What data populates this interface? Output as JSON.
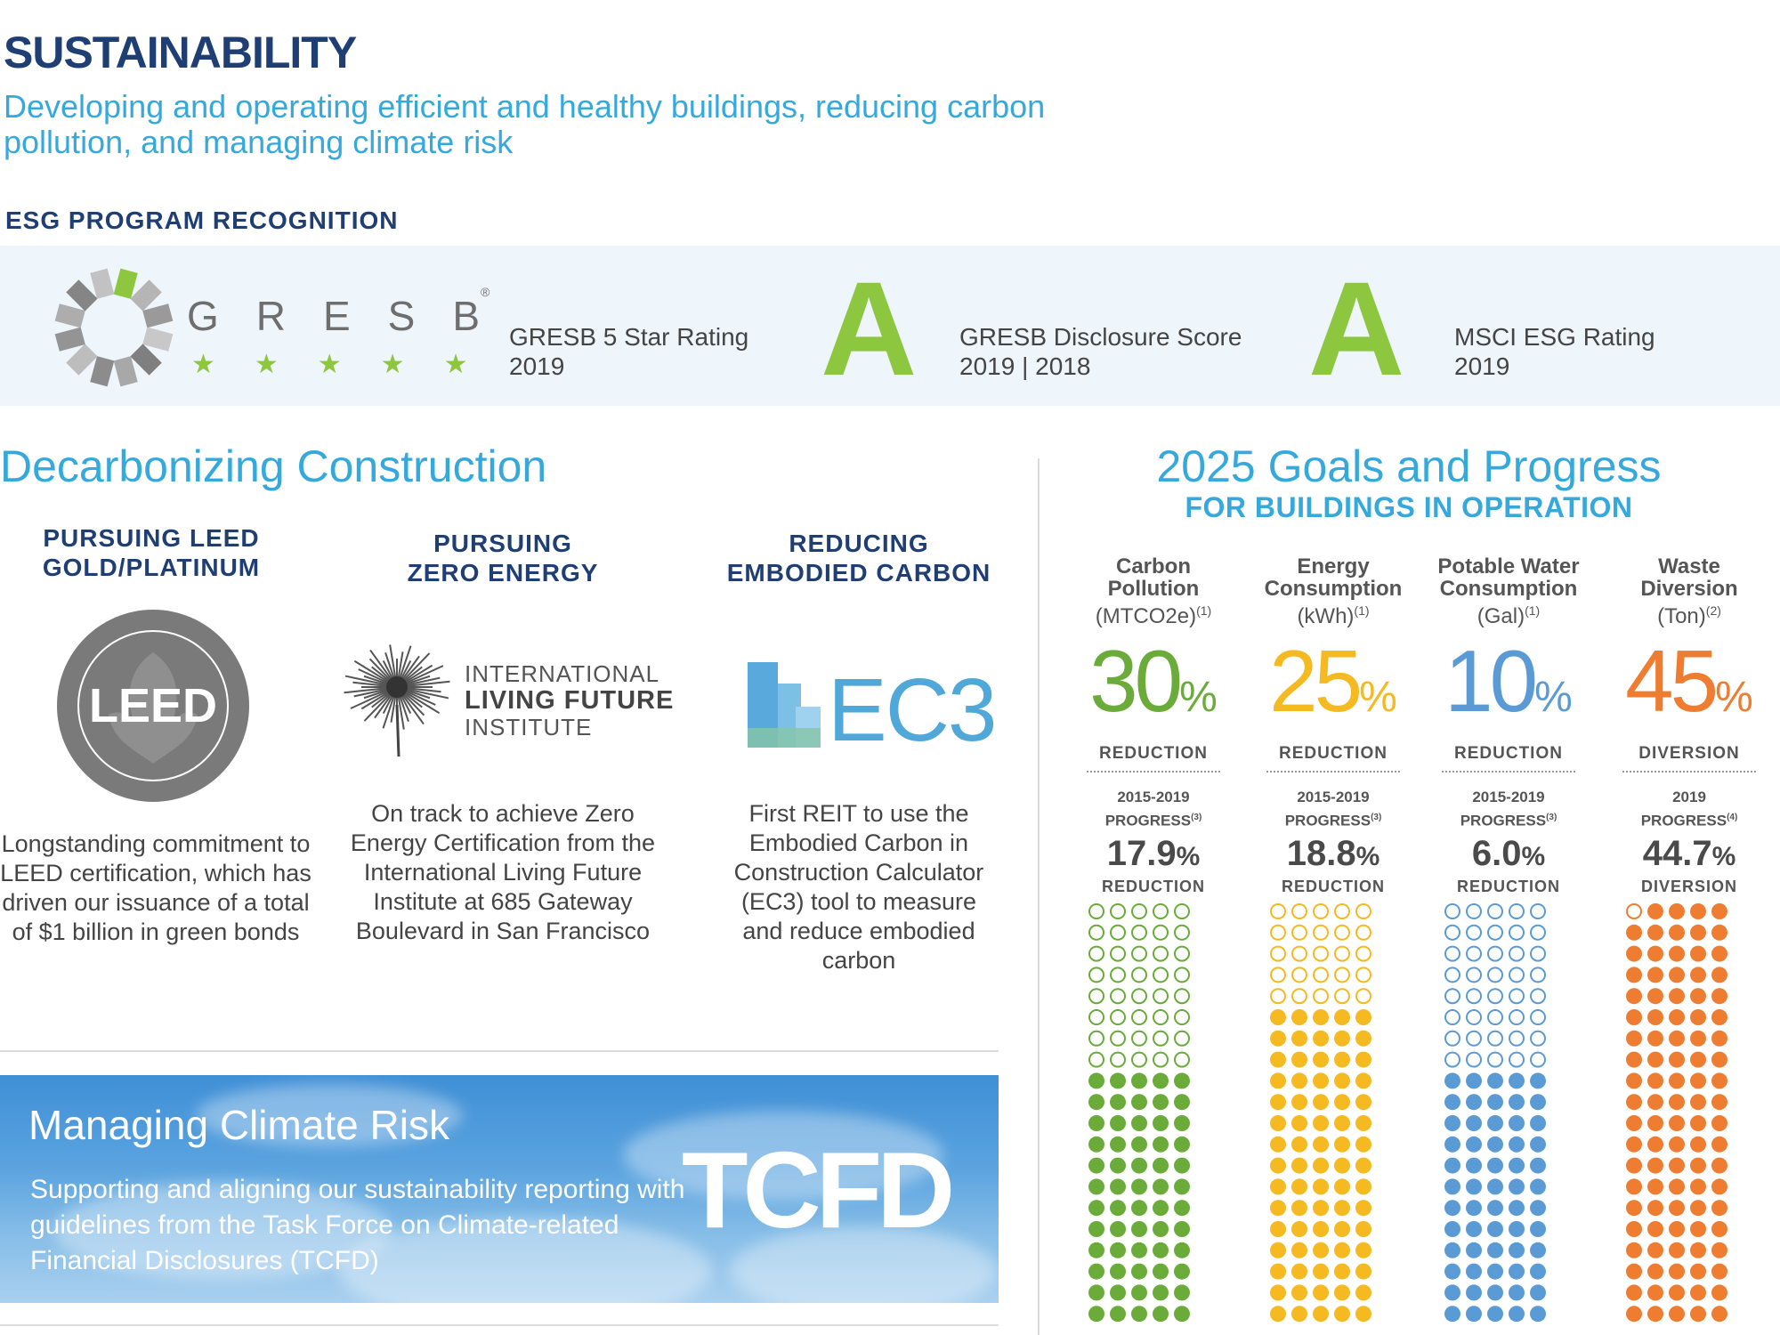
{
  "header": {
    "title": "SUSTAINABILITY",
    "subtitle": "Developing and operating efficient and healthy buildings, reducing carbon pollution, and managing climate risk"
  },
  "esg": {
    "heading": "ESG PROGRAM RECOGNITION",
    "gresb_logo_text": "GRESB",
    "gresb_reg": "®",
    "stars": "★★★★★",
    "items": [
      {
        "line1": "GRESB 5 Star Rating",
        "line2": "2019"
      },
      {
        "grade": "A",
        "line1": "GRESB Disclosure Score",
        "line2": "2019 | 2018"
      },
      {
        "grade": "A",
        "line1": "MSCI ESG Rating",
        "line2": "2019"
      }
    ]
  },
  "decarb": {
    "title": "Decarbonizing Construction",
    "columns": [
      {
        "head1": "PURSUING LEED",
        "head2": "GOLD/PLATINUM",
        "logo_text": "LEED",
        "text": "Longstanding commitment to LEED certification, which has driven our issuance of a total of $1 billion in green bonds"
      },
      {
        "head1": "PURSUING",
        "head2": "ZERO ENERGY",
        "logo_line1": "INTERNATIONAL",
        "logo_line2": "LIVING FUTURE",
        "logo_line3": "INSTITUTE",
        "text": "On track to achieve Zero Energy Certification from the International Living Future Institute at 685 Gateway Boulevard in San Francisco"
      },
      {
        "head1": "REDUCING",
        "head2": "EMBODIED CARBON",
        "logo_text": "EC3",
        "text": "First REIT to use the Embodied Carbon in Construction Calculator (EC3) tool to measure and reduce embodied carbon"
      }
    ]
  },
  "climate": {
    "title": "Managing Climate Risk",
    "text": "Supporting and aligning our sustainability reporting with guidelines from the Task Force on Climate-related Financial Disclosures (TCFD)",
    "logo": "TCFD"
  },
  "goals": {
    "title": "2025 Goals and Progress",
    "subtitle": "FOR BUILDINGS IN OPERATION",
    "items": [
      {
        "name1": "Carbon",
        "name2": "Pollution",
        "unit": "(MTCO2e)",
        "note": "(1)",
        "target": "30",
        "pct_sign": "%",
        "target_label": "REDUCTION",
        "period": "2015-2019",
        "prog_label": "PROGRESS",
        "prog_note": "(3)",
        "progress": "17.9",
        "progress_label": "REDUCTION",
        "color": "#6aab3a",
        "progress_fraction": 0.6
      },
      {
        "name1": "Energy",
        "name2": "Consumption",
        "unit": "(kWh)",
        "note": "(1)",
        "target": "25",
        "pct_sign": "%",
        "target_label": "REDUCTION",
        "period": "2015-2019",
        "prog_label": "PROGRESS",
        "prog_note": "(3)",
        "progress": "18.8",
        "progress_label": "REDUCTION",
        "color": "#f5b921",
        "progress_fraction": 0.75
      },
      {
        "name1": "Potable Water",
        "name2": "Consumption",
        "unit": "(Gal)",
        "note": "(1)",
        "target": "10",
        "pct_sign": "%",
        "target_label": "REDUCTION",
        "period": "2015-2019",
        "prog_label": "PROGRESS",
        "prog_note": "(3)",
        "progress": "6.0",
        "progress_label": "REDUCTION",
        "color": "#5b9bd5",
        "progress_fraction": 0.6
      },
      {
        "name1": "Waste",
        "name2": "Diversion",
        "unit": "(Ton)",
        "note": "(2)",
        "target": "45",
        "pct_sign": "%",
        "target_label": "DIVERSION",
        "period": "2019",
        "prog_label": "PROGRESS",
        "prog_note": "(4)",
        "progress": "44.7",
        "progress_label": "DIVERSION",
        "color": "#ee7d31",
        "progress_fraction": 0.993
      }
    ]
  }
}
